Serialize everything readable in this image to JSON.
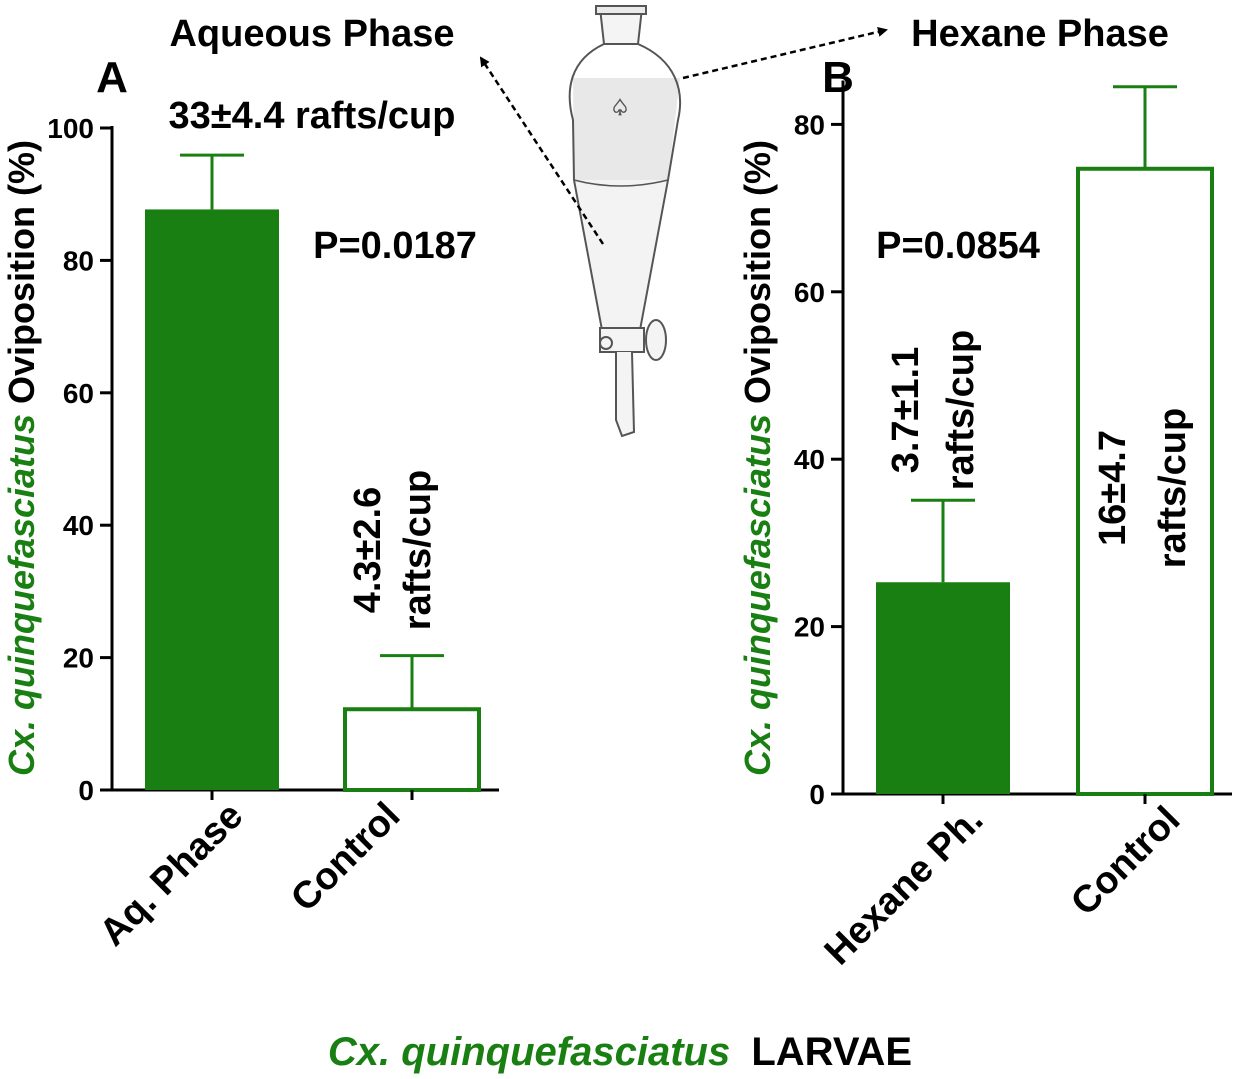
{
  "colors": {
    "green": "#1a7f12",
    "black": "#000000",
    "white": "#ffffff"
  },
  "header": {
    "aqueous_phase": "Aqueous Phase",
    "hexane_phase": "Hexane Phase"
  },
  "footer": {
    "species": "Cx. quinquefasciatus",
    "stage": "LARVAE"
  },
  "illustration": {
    "icon": "separatory-funnel-icon"
  },
  "chart_data": [
    {
      "panel": "A",
      "type": "bar",
      "ylabel_species": "Cx. quinquefasciatus",
      "ylabel_rest": "Oviposition (%)",
      "ylim": [
        0,
        100
      ],
      "yticks": [
        0,
        20,
        40,
        60,
        80,
        100
      ],
      "categories": [
        "Aq. Phase",
        "Control"
      ],
      "values": [
        87.7,
        12.2
      ],
      "errors": [
        8.2,
        8.1
      ],
      "fills": [
        "filled",
        "open"
      ],
      "p_value": "P=0.0187",
      "bar_labels": [
        [
          "33±4.4 rafts/cup"
        ],
        [
          "4.3±2.6",
          "rafts/cup"
        ]
      ]
    },
    {
      "panel": "B",
      "type": "bar",
      "ylabel_species": "Cx. quinquefasciatus",
      "ylabel_rest": "Oviposition (%)",
      "ylim": [
        0,
        85
      ],
      "yticks": [
        0,
        20,
        40,
        60,
        80
      ],
      "categories": [
        "Hexane Ph.",
        "Control"
      ],
      "values": [
        25.3,
        74.7
      ],
      "errors": [
        9.8,
        9.8
      ],
      "fills": [
        "filled",
        "open"
      ],
      "p_value": "P=0.0854",
      "bar_labels": [
        [
          "3.7±1.1",
          "rafts/cup"
        ],
        [
          "16±4.7",
          "rafts/cup"
        ]
      ]
    }
  ]
}
